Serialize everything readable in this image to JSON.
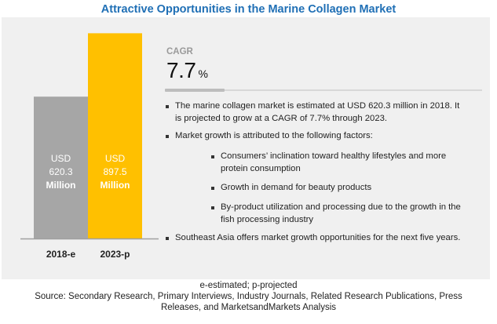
{
  "title": "Attractive Opportunities in the Marine Collagen Market",
  "chart_data": {
    "type": "bar",
    "title": "Attractive Opportunities in the Marine Collagen Market",
    "categories": [
      "2018-e",
      "2023-p"
    ],
    "values": [
      620.3,
      897.5
    ],
    "value_labels": [
      [
        "USD",
        "620.3",
        "Million"
      ],
      [
        "USD",
        "897.5",
        "Million"
      ]
    ],
    "unit": "USD Million",
    "colors": [
      "#a6a6a6",
      "#ffc000"
    ],
    "xlabel": "",
    "ylabel": "",
    "ylim": [
      0,
      940
    ],
    "grid": false
  },
  "cagr": {
    "label": "CAGR",
    "value": "7.7",
    "unit": "%"
  },
  "bullets": [
    {
      "text_line1": "The marine collagen market is estimated at USD 620.3 million in 2018. It",
      "text_line2": "is projected to grow at a CAGR of 7.7% through 2023."
    },
    {
      "text_line1": "Market growth is attributed to the following factors:"
    },
    {
      "text_line1": "Consumers’ inclination toward healthy lifestyles and more",
      "text_line2": "protein consumption"
    },
    {
      "text_line1": "Growth in demand for beauty products"
    },
    {
      "text_line1": "By-product utilization and processing due to the growth  in the",
      "text_line2": "fish processing industry"
    },
    {
      "text_line1": "Southeast Asia offers market growth opportunities for the next five years."
    }
  ],
  "footer": {
    "legend_note": "e-estimated; p-projected",
    "source_line1": "Source: Secondary Research, Primary Interviews, Industry Journals, Related Research Publications, Press",
    "source_line2": "Releases, and MarketsandMarkets Analysis"
  },
  "colors": {
    "title": "#1f6fb5",
    "panel": "#f0f0f0"
  }
}
